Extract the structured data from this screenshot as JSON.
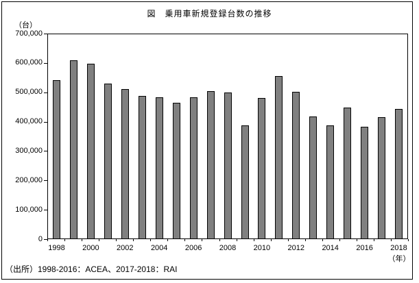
{
  "figure": {
    "title": "図　乗用車新規登録台数の推移",
    "y_unit": "（台）",
    "x_unit": "（年）",
    "source": "（出所）1998-2016：ACEA、2017-2018：RAI"
  },
  "chart_data": {
    "type": "bar",
    "title": "図　乗用車新規登録台数の推移",
    "categories": [
      1998,
      1999,
      2000,
      2001,
      2002,
      2003,
      2004,
      2005,
      2006,
      2007,
      2008,
      2009,
      2010,
      2011,
      2012,
      2013,
      2014,
      2015,
      2016,
      2017,
      2018
    ],
    "values": [
      543000,
      611000,
      598000,
      531000,
      511000,
      489000,
      484000,
      466000,
      484000,
      505000,
      500000,
      387000,
      482000,
      556000,
      502000,
      417000,
      387000,
      449000,
      382000,
      415000,
      444000
    ],
    "xlabel": "（年）",
    "ylabel": "（台）",
    "ylim": [
      0,
      700000
    ],
    "y_ticks": [
      0,
      100000,
      200000,
      300000,
      400000,
      500000,
      600000,
      700000
    ],
    "y_tick_labels": [
      "0",
      "100,000",
      "200,000",
      "300,000",
      "400,000",
      "500,000",
      "600,000",
      "700,000"
    ],
    "x_tick_labels": [
      "1998",
      "2000",
      "2002",
      "2004",
      "2006",
      "2008",
      "2010",
      "2012",
      "2014",
      "2016",
      "2018"
    ],
    "grid": false,
    "legend": false,
    "bar_color": "#808080",
    "bar_border_color": "#000000",
    "source": "（出所）1998-2016：ACEA、2017-2018：RAI"
  }
}
